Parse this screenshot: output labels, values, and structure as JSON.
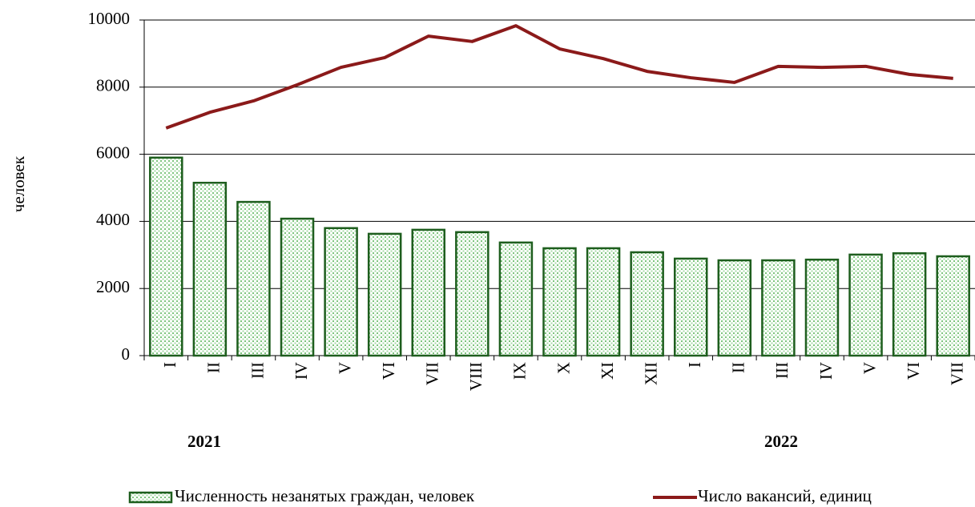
{
  "chart_data": {
    "type": "bar_line",
    "y_label": "человек",
    "categories": [
      "I",
      "II",
      "III",
      "IV",
      "V",
      "VI",
      "VII",
      "VIII",
      "IX",
      "X",
      "XI",
      "XII",
      "I",
      "II",
      "III",
      "IV",
      "V",
      "VI",
      "VII"
    ],
    "year_labels": [
      "2021",
      "2022"
    ],
    "series": [
      {
        "name": "Численность незанятых граждан, человек",
        "type": "bar",
        "color": "#1e5e1e",
        "values": [
          5900,
          5150,
          4580,
          4080,
          3800,
          3630,
          3750,
          3680,
          3370,
          3200,
          3200,
          3080,
          2890,
          2840,
          2840,
          2860,
          3010,
          3050,
          2960
        ]
      },
      {
        "name": "Число вакансий, единиц",
        "type": "line",
        "color": "#8b1a1a",
        "values": [
          6780,
          7250,
          7590,
          8070,
          8590,
          8880,
          9520,
          9360,
          9830,
          9140,
          8850,
          8470,
          8280,
          8140,
          8620,
          8590,
          8620,
          8380,
          8260
        ]
      }
    ],
    "ylim": [
      0,
      10000
    ],
    "yticks": [
      0,
      2000,
      4000,
      6000,
      8000,
      10000
    ],
    "grid": true
  }
}
